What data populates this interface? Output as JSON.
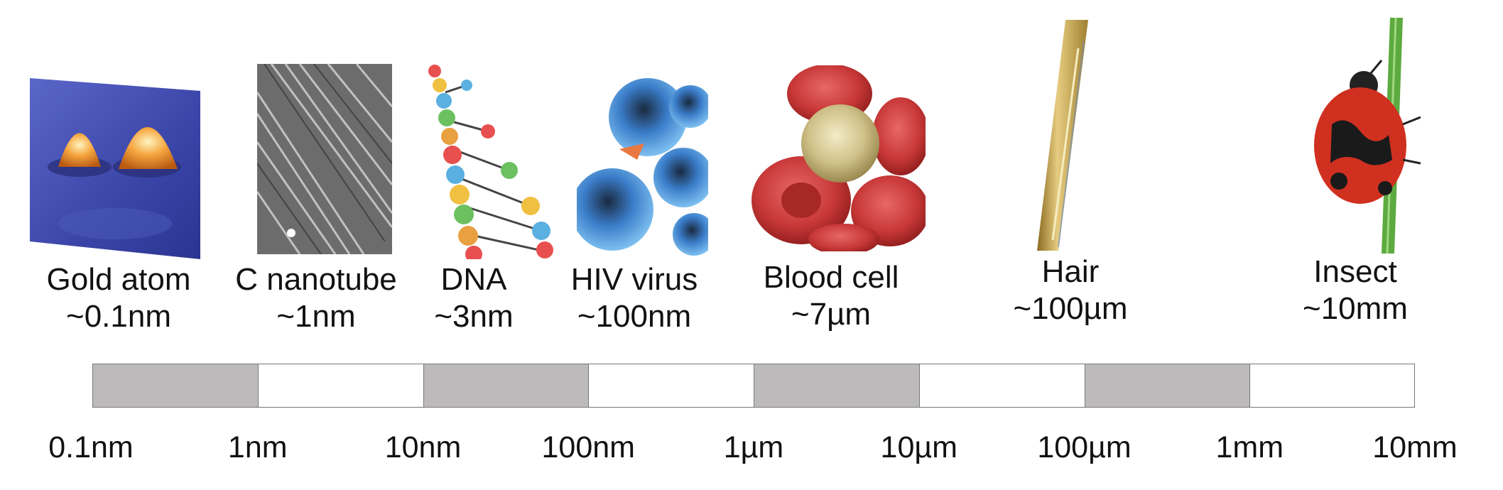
{
  "objects": [
    {
      "name": "Gold atom",
      "size": "~0.1nm",
      "icon": "gold-atom-stm-image"
    },
    {
      "name": "C nanotube",
      "size": "~1nm",
      "icon": "carbon-nanotube-sem-image"
    },
    {
      "name": "DNA",
      "size": "~3nm",
      "icon": "dna-helix-image"
    },
    {
      "name": "HIV virus",
      "size": "~100nm",
      "icon": "hiv-virus-image"
    },
    {
      "name": "Blood cell",
      "size": "~7µm",
      "icon": "blood-cell-image"
    },
    {
      "name": "Hair",
      "size": "~100µm",
      "icon": "hair-strand-image"
    },
    {
      "name": "Insect",
      "size": "~10mm",
      "icon": "ladybug-insect-image"
    }
  ],
  "scale": {
    "ticks": [
      "0.1nm",
      "1nm",
      "10nm",
      "100nm",
      "1µm",
      "10µm",
      "100µm",
      "1mm",
      "10mm"
    ],
    "segment_shading": [
      true,
      false,
      true,
      false,
      true,
      false,
      true,
      false
    ],
    "colors": {
      "shaded": "#bdbabc",
      "plain": "#ffffff",
      "border": "#777777"
    }
  }
}
